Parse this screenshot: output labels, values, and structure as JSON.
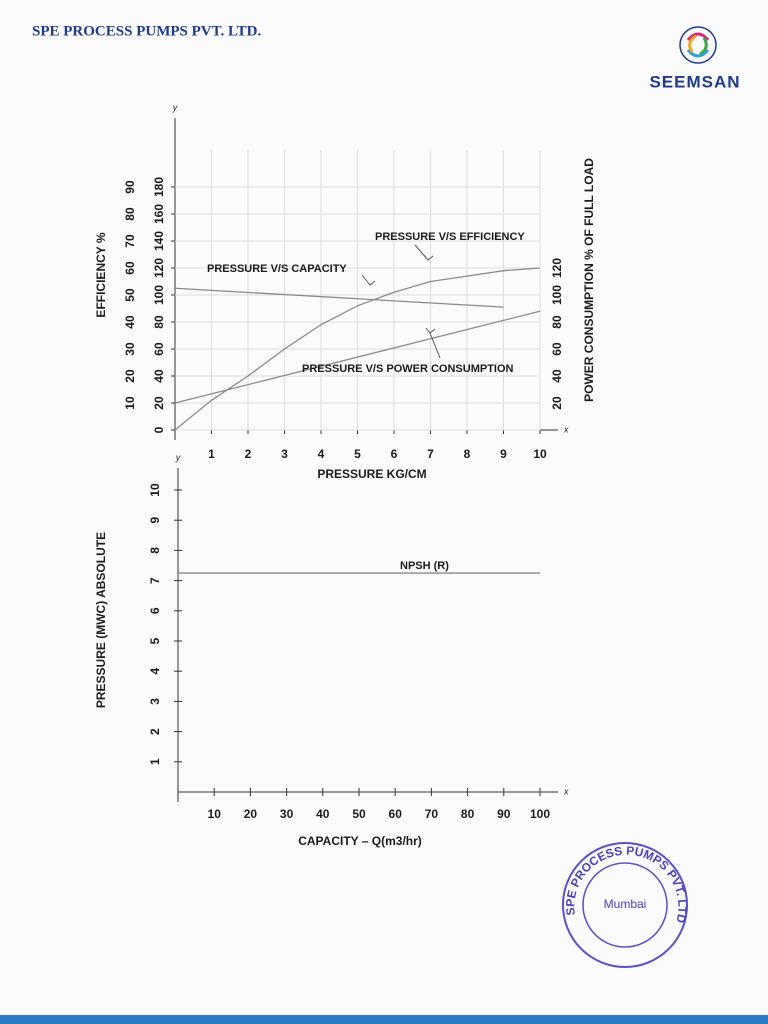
{
  "header": {
    "company": "SPE PROCESS PUMPS PVT. LTD.",
    "logo_text": "SEEMSAN"
  },
  "stamp": {
    "ring_text": "SPE PROCESS PUMPS PVT. LTD",
    "center_text": "Mumbai"
  },
  "chart_data": [
    {
      "type": "line",
      "ylabel": "EFFICIENCY %",
      "y3label": "POWER CONSUMPTION % OF FULL LOAD",
      "xlabel": "PRESSURE KG/CM",
      "x_axis_letter": "x",
      "y_axis_letter": "y",
      "xlim": [
        0,
        10
      ],
      "xticks": [
        1,
        2,
        3,
        4,
        5,
        6,
        7,
        8,
        9,
        10
      ],
      "ylim": [
        0,
        100
      ],
      "yticks": [
        10,
        20,
        30,
        40,
        50,
        60,
        70,
        80,
        90
      ],
      "y2lim": [
        0,
        200
      ],
      "y2ticks": [
        0,
        20,
        40,
        60,
        80,
        100,
        120,
        140,
        160,
        180
      ],
      "y3lim": [
        0,
        200
      ],
      "y3ticks": [
        20,
        40,
        60,
        80,
        100,
        120
      ],
      "grid": true,
      "series": [
        {
          "name": "PRESSURE V/S EFFICIENCY",
          "color": "#8a8a8a",
          "axis": "y",
          "x": [
            0,
            1,
            2,
            3,
            4,
            5,
            6,
            7,
            8,
            9,
            10
          ],
          "values": [
            0,
            11,
            20,
            30,
            39,
            46,
            51,
            55,
            57,
            59,
            60
          ]
        },
        {
          "name": "PRESSURE V/S CAPACITY",
          "color": "#8a8a8a",
          "axis": "y2",
          "x": [
            0,
            9
          ],
          "values": [
            105,
            91
          ]
        },
        {
          "name": "PRESSURE V/S POWER CONSUMPTION",
          "color": "#8a8a8a",
          "axis": "y3",
          "x": [
            0,
            10
          ],
          "values": [
            20,
            88
          ]
        }
      ]
    },
    {
      "type": "line",
      "ylabel": "PRESSURE (MWC) ABSOLUTE",
      "xlabel": "CAPACITY – Q(m3/hr)",
      "x_axis_letter": "x",
      "y_axis_letter": "y",
      "xlim": [
        0,
        100
      ],
      "xticks": [
        10,
        20,
        30,
        40,
        50,
        60,
        70,
        80,
        90,
        100
      ],
      "ylim": [
        0,
        10
      ],
      "yticks": [
        1,
        2,
        3,
        4,
        5,
        6,
        7,
        8,
        9,
        10
      ],
      "grid": false,
      "series": [
        {
          "name": "NPSH (R)",
          "color": "#8a8a8a",
          "axis": "y",
          "x": [
            0,
            100
          ],
          "values": [
            7.25,
            7.25
          ]
        }
      ]
    }
  ]
}
